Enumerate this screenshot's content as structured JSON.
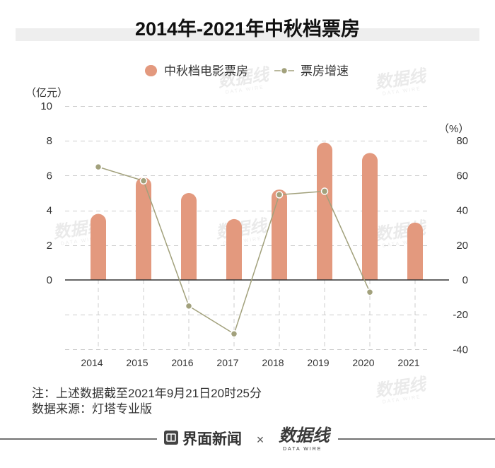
{
  "chart_data": {
    "type": "bar",
    "title": "2014年-2021年中秋档票房",
    "categories": [
      "2014",
      "2015",
      "2016",
      "2017",
      "2018",
      "2019",
      "2020",
      "2021"
    ],
    "series": [
      {
        "name": "中秋档电影票房",
        "type": "bar",
        "axis": "left",
        "color": "#e3997e",
        "values": [
          3.8,
          5.9,
          5.0,
          3.5,
          5.2,
          7.9,
          7.3,
          3.3
        ]
      },
      {
        "name": "票房增速",
        "type": "line",
        "axis": "right",
        "color": "#a2a17c",
        "values": [
          65,
          57,
          -15,
          -31,
          49,
          51,
          -7,
          null
        ]
      }
    ],
    "y_left": {
      "label": "（亿元）",
      "ticks": [
        0,
        2,
        4,
        6,
        8,
        10
      ],
      "range": [
        0,
        10
      ]
    },
    "y_right": {
      "label": "（%）",
      "ticks": [
        80,
        60,
        40,
        20,
        0,
        -20,
        -40
      ],
      "range": [
        -40,
        80
      ]
    },
    "grid": true,
    "legend_position": "top-center"
  },
  "notes": [
    "注：上述数据截至2021年9月21日20时25分",
    "数据来源：灯塔专业版"
  ],
  "watermark": {
    "text": "数据线",
    "subtext": "DATA WIRE"
  },
  "footer": {
    "brand": "界面新闻",
    "separator": "×",
    "partner": "数据线",
    "partner_en": "DATA WIRE"
  },
  "colors": {
    "title_band": "#eeeeee",
    "grid": "#cccccc",
    "axis": "#333333",
    "footer_rule": "#444444"
  }
}
